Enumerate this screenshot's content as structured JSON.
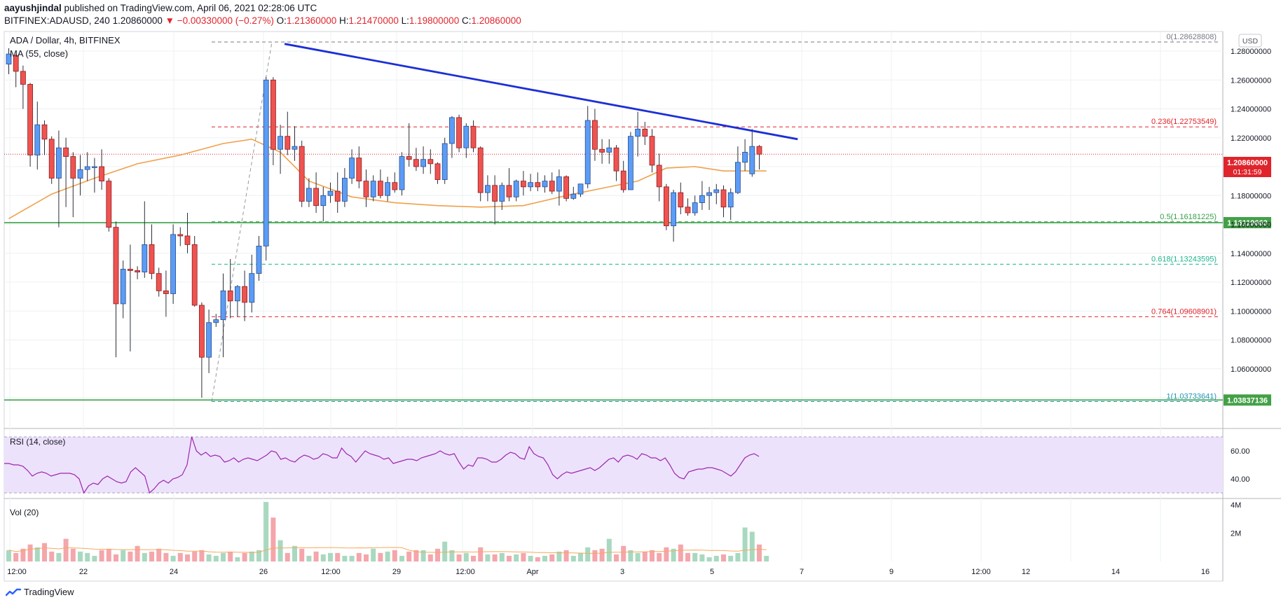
{
  "header": {
    "author": "aayushjindal",
    "published": " published on TradingView.com, April 06, 2021 02:28:06 UTC",
    "symbol": "BITFINEX:ADAUSD, 240",
    "last": "1.20860000",
    "change": "▼ −0.00330000 (−0.27%)",
    "o_label": "O:",
    "o": "1.21360000",
    "h_label": "H:",
    "h": "1.21470000",
    "l_label": "L:",
    "l": "1.19800000",
    "c_label": "C:",
    "c": "1.20860000"
  },
  "legend": {
    "title": "ADA / Dollar, 4h, BITFINEX",
    "ma": "MA (55, close)",
    "currency": "USD",
    "rsi": "RSI (14, close)",
    "vol": "Vol (20)"
  },
  "price_badge": {
    "value": "1.20860000",
    "countdown": "01:31:59"
  },
  "footer": {
    "brand": "TradingView"
  },
  "colors": {
    "up": "#5b9cf6",
    "down": "#ef5350",
    "ma": "#f0a04b",
    "trend": "#1c2fd6",
    "support": "#3aa04a",
    "rsi": "#9c27b0",
    "rsi_band": "#ede2fb",
    "vol_up": "#a8d9c0",
    "vol_down": "#f4a6ab",
    "vol_ma": "#f6a85c"
  },
  "chart_data": {
    "type": "candlestick",
    "pair": "ADA / Dollar",
    "timeframe": "4h",
    "exchange": "BITFINEX",
    "ylim": [
      1.02,
      1.3
    ],
    "x_ticks": [
      "12:00",
      "22",
      "24",
      "26",
      "12:00",
      "29",
      "12:00",
      "Apr",
      "3",
      "5",
      "7",
      "9",
      "12:00",
      "12",
      "14",
      "16"
    ],
    "y_ticks": [
      "1.28000000",
      "1.26000000",
      "1.24000000",
      "1.22000000",
      "1.18000000",
      "1.16000000",
      "1.14000000",
      "1.12000000",
      "1.10000000",
      "1.08000000",
      "1.06000000"
    ],
    "candles": [
      {
        "o": 1.271,
        "h": 1.282,
        "l": 1.264,
        "c": 1.278
      },
      {
        "o": 1.277,
        "h": 1.278,
        "l": 1.255,
        "c": 1.266
      },
      {
        "o": 1.266,
        "h": 1.27,
        "l": 1.24,
        "c": 1.257
      },
      {
        "o": 1.257,
        "h": 1.258,
        "l": 1.2,
        "c": 1.208
      },
      {
        "o": 1.208,
        "h": 1.245,
        "l": 1.198,
        "c": 1.229
      },
      {
        "o": 1.229,
        "h": 1.232,
        "l": 1.208,
        "c": 1.219
      },
      {
        "o": 1.219,
        "h": 1.221,
        "l": 1.188,
        "c": 1.192
      },
      {
        "o": 1.192,
        "h": 1.225,
        "l": 1.158,
        "c": 1.213
      },
      {
        "o": 1.213,
        "h": 1.22,
        "l": 1.172,
        "c": 1.207
      },
      {
        "o": 1.207,
        "h": 1.21,
        "l": 1.165,
        "c": 1.192
      },
      {
        "o": 1.192,
        "h": 1.208,
        "l": 1.18,
        "c": 1.198
      },
      {
        "o": 1.198,
        "h": 1.21,
        "l": 1.19,
        "c": 1.2
      },
      {
        "o": 1.2,
        "h": 1.206,
        "l": 1.182,
        "c": 1.2
      },
      {
        "o": 1.2,
        "h": 1.212,
        "l": 1.184,
        "c": 1.19
      },
      {
        "o": 1.19,
        "h": 1.192,
        "l": 1.155,
        "c": 1.158
      },
      {
        "o": 1.158,
        "h": 1.162,
        "l": 1.068,
        "c": 1.105
      },
      {
        "o": 1.105,
        "h": 1.135,
        "l": 1.095,
        "c": 1.129
      },
      {
        "o": 1.129,
        "h": 1.146,
        "l": 1.072,
        "c": 1.128
      },
      {
        "o": 1.128,
        "h": 1.131,
        "l": 1.122,
        "c": 1.127
      },
      {
        "o": 1.127,
        "h": 1.176,
        "l": 1.123,
        "c": 1.146
      },
      {
        "o": 1.146,
        "h": 1.16,
        "l": 1.122,
        "c": 1.126
      },
      {
        "o": 1.126,
        "h": 1.13,
        "l": 1.11,
        "c": 1.114
      },
      {
        "o": 1.114,
        "h": 1.128,
        "l": 1.096,
        "c": 1.112
      },
      {
        "o": 1.112,
        "h": 1.16,
        "l": 1.105,
        "c": 1.153
      },
      {
        "o": 1.153,
        "h": 1.158,
        "l": 1.145,
        "c": 1.152
      },
      {
        "o": 1.152,
        "h": 1.168,
        "l": 1.14,
        "c": 1.146
      },
      {
        "o": 1.146,
        "h": 1.152,
        "l": 1.103,
        "c": 1.104
      },
      {
        "o": 1.104,
        "h": 1.106,
        "l": 1.04,
        "c": 1.068
      },
      {
        "o": 1.068,
        "h": 1.101,
        "l": 1.057,
        "c": 1.092
      },
      {
        "o": 1.092,
        "h": 1.098,
        "l": 1.089,
        "c": 1.094
      },
      {
        "o": 1.094,
        "h": 1.126,
        "l": 1.068,
        "c": 1.114
      },
      {
        "o": 1.114,
        "h": 1.136,
        "l": 1.095,
        "c": 1.107
      },
      {
        "o": 1.107,
        "h": 1.118,
        "l": 1.096,
        "c": 1.117
      },
      {
        "o": 1.117,
        "h": 1.128,
        "l": 1.093,
        "c": 1.106
      },
      {
        "o": 1.106,
        "h": 1.139,
        "l": 1.099,
        "c": 1.126
      },
      {
        "o": 1.126,
        "h": 1.152,
        "l": 1.121,
        "c": 1.145
      },
      {
        "o": 1.145,
        "h": 1.262,
        "l": 1.135,
        "c": 1.26
      },
      {
        "o": 1.26,
        "h": 1.262,
        "l": 1.201,
        "c": 1.212
      },
      {
        "o": 1.212,
        "h": 1.229,
        "l": 1.195,
        "c": 1.221
      },
      {
        "o": 1.221,
        "h": 1.238,
        "l": 1.208,
        "c": 1.212
      },
      {
        "o": 1.212,
        "h": 1.228,
        "l": 1.204,
        "c": 1.214
      },
      {
        "o": 1.214,
        "h": 1.218,
        "l": 1.172,
        "c": 1.176
      },
      {
        "o": 1.176,
        "h": 1.192,
        "l": 1.172,
        "c": 1.185
      },
      {
        "o": 1.185,
        "h": 1.196,
        "l": 1.168,
        "c": 1.173
      },
      {
        "o": 1.173,
        "h": 1.186,
        "l": 1.162,
        "c": 1.18
      },
      {
        "o": 1.18,
        "h": 1.189,
        "l": 1.175,
        "c": 1.183
      },
      {
        "o": 1.183,
        "h": 1.196,
        "l": 1.168,
        "c": 1.176
      },
      {
        "o": 1.176,
        "h": 1.199,
        "l": 1.172,
        "c": 1.192
      },
      {
        "o": 1.192,
        "h": 1.212,
        "l": 1.188,
        "c": 1.206
      },
      {
        "o": 1.206,
        "h": 1.214,
        "l": 1.185,
        "c": 1.19
      },
      {
        "o": 1.19,
        "h": 1.198,
        "l": 1.172,
        "c": 1.179
      },
      {
        "o": 1.179,
        "h": 1.194,
        "l": 1.176,
        "c": 1.19
      },
      {
        "o": 1.19,
        "h": 1.198,
        "l": 1.178,
        "c": 1.18
      },
      {
        "o": 1.18,
        "h": 1.193,
        "l": 1.176,
        "c": 1.189
      },
      {
        "o": 1.189,
        "h": 1.196,
        "l": 1.182,
        "c": 1.184
      },
      {
        "o": 1.184,
        "h": 1.21,
        "l": 1.18,
        "c": 1.207
      },
      {
        "o": 1.207,
        "h": 1.23,
        "l": 1.2,
        "c": 1.205
      },
      {
        "o": 1.205,
        "h": 1.213,
        "l": 1.197,
        "c": 1.2
      },
      {
        "o": 1.2,
        "h": 1.214,
        "l": 1.195,
        "c": 1.205
      },
      {
        "o": 1.205,
        "h": 1.212,
        "l": 1.195,
        "c": 1.202
      },
      {
        "o": 1.202,
        "h": 1.203,
        "l": 1.188,
        "c": 1.191
      },
      {
        "o": 1.191,
        "h": 1.22,
        "l": 1.188,
        "c": 1.216
      },
      {
        "o": 1.216,
        "h": 1.235,
        "l": 1.206,
        "c": 1.234
      },
      {
        "o": 1.234,
        "h": 1.236,
        "l": 1.21,
        "c": 1.213
      },
      {
        "o": 1.213,
        "h": 1.23,
        "l": 1.206,
        "c": 1.228
      },
      {
        "o": 1.228,
        "h": 1.232,
        "l": 1.21,
        "c": 1.213
      },
      {
        "o": 1.213,
        "h": 1.214,
        "l": 1.176,
        "c": 1.182
      },
      {
        "o": 1.182,
        "h": 1.194,
        "l": 1.176,
        "c": 1.187
      },
      {
        "o": 1.187,
        "h": 1.194,
        "l": 1.16,
        "c": 1.176
      },
      {
        "o": 1.176,
        "h": 1.189,
        "l": 1.17,
        "c": 1.187
      },
      {
        "o": 1.187,
        "h": 1.199,
        "l": 1.176,
        "c": 1.179
      },
      {
        "o": 1.179,
        "h": 1.191,
        "l": 1.176,
        "c": 1.19
      },
      {
        "o": 1.19,
        "h": 1.197,
        "l": 1.18,
        "c": 1.186
      },
      {
        "o": 1.186,
        "h": 1.195,
        "l": 1.183,
        "c": 1.189
      },
      {
        "o": 1.189,
        "h": 1.196,
        "l": 1.183,
        "c": 1.186
      },
      {
        "o": 1.186,
        "h": 1.194,
        "l": 1.182,
        "c": 1.19
      },
      {
        "o": 1.19,
        "h": 1.196,
        "l": 1.181,
        "c": 1.183
      },
      {
        "o": 1.183,
        "h": 1.198,
        "l": 1.173,
        "c": 1.193
      },
      {
        "o": 1.193,
        "h": 1.194,
        "l": 1.176,
        "c": 1.178
      },
      {
        "o": 1.178,
        "h": 1.186,
        "l": 1.177,
        "c": 1.181
      },
      {
        "o": 1.181,
        "h": 1.188,
        "l": 1.179,
        "c": 1.188
      },
      {
        "o": 1.188,
        "h": 1.242,
        "l": 1.185,
        "c": 1.232
      },
      {
        "o": 1.232,
        "h": 1.24,
        "l": 1.204,
        "c": 1.212
      },
      {
        "o": 1.212,
        "h": 1.219,
        "l": 1.202,
        "c": 1.21
      },
      {
        "o": 1.21,
        "h": 1.219,
        "l": 1.202,
        "c": 1.213
      },
      {
        "o": 1.213,
        "h": 1.215,
        "l": 1.19,
        "c": 1.197
      },
      {
        "o": 1.197,
        "h": 1.204,
        "l": 1.182,
        "c": 1.184
      },
      {
        "o": 1.184,
        "h": 1.224,
        "l": 1.184,
        "c": 1.221
      },
      {
        "o": 1.221,
        "h": 1.238,
        "l": 1.207,
        "c": 1.226
      },
      {
        "o": 1.226,
        "h": 1.231,
        "l": 1.215,
        "c": 1.221
      },
      {
        "o": 1.221,
        "h": 1.226,
        "l": 1.196,
        "c": 1.201
      },
      {
        "o": 1.201,
        "h": 1.209,
        "l": 1.176,
        "c": 1.186
      },
      {
        "o": 1.186,
        "h": 1.188,
        "l": 1.156,
        "c": 1.159
      },
      {
        "o": 1.159,
        "h": 1.184,
        "l": 1.148,
        "c": 1.182
      },
      {
        "o": 1.182,
        "h": 1.189,
        "l": 1.167,
        "c": 1.172
      },
      {
        "o": 1.172,
        "h": 1.178,
        "l": 1.166,
        "c": 1.168
      },
      {
        "o": 1.168,
        "h": 1.18,
        "l": 1.166,
        "c": 1.175
      },
      {
        "o": 1.175,
        "h": 1.19,
        "l": 1.17,
        "c": 1.18
      },
      {
        "o": 1.18,
        "h": 1.186,
        "l": 1.17,
        "c": 1.182
      },
      {
        "o": 1.182,
        "h": 1.188,
        "l": 1.174,
        "c": 1.184
      },
      {
        "o": 1.184,
        "h": 1.187,
        "l": 1.165,
        "c": 1.172
      },
      {
        "o": 1.172,
        "h": 1.185,
        "l": 1.163,
        "c": 1.182
      },
      {
        "o": 1.182,
        "h": 1.214,
        "l": 1.181,
        "c": 1.203
      },
      {
        "o": 1.203,
        "h": 1.219,
        "l": 1.197,
        "c": 1.21
      },
      {
        "o": 1.195,
        "h": 1.226,
        "l": 1.193,
        "c": 1.214
      },
      {
        "o": 1.214,
        "h": 1.215,
        "l": 1.198,
        "c": 1.2086
      }
    ],
    "moving_average": {
      "name": "MA (55, close)",
      "points": [
        [
          0,
          1.164
        ],
        [
          6,
          1.181
        ],
        [
          12,
          1.192
        ],
        [
          18,
          1.202
        ],
        [
          24,
          1.208
        ],
        [
          30,
          1.216
        ],
        [
          34,
          1.219
        ],
        [
          38,
          1.21
        ],
        [
          42,
          1.19
        ],
        [
          48,
          1.179
        ],
        [
          54,
          1.175
        ],
        [
          60,
          1.173
        ],
        [
          66,
          1.172
        ],
        [
          72,
          1.173
        ],
        [
          78,
          1.18
        ],
        [
          84,
          1.186
        ],
        [
          88,
          1.19
        ],
        [
          92,
          1.199
        ],
        [
          96,
          1.2
        ],
        [
          100,
          1.197
        ],
        [
          104,
          1.197
        ],
        [
          106,
          1.197
        ]
      ]
    },
    "trend_line": {
      "from": [
        38,
        1.285
      ],
      "to": [
        109,
        1.219
      ]
    },
    "fibonacci": [
      {
        "label": "0(1.28628808)",
        "value": 1.28628808,
        "color": "#787b86"
      },
      {
        "label": "0.236(1.22753549)",
        "value": 1.22753549,
        "color": "#e0242c"
      },
      {
        "label": "0.5(1.16181225)",
        "value": 1.16181225,
        "color": "#3aa04a"
      },
      {
        "label": "0.618(1.13243595)",
        "value": 1.13243595,
        "color": "#1fb48e"
      },
      {
        "label": "0.764(1.09608901)",
        "value": 1.09608901,
        "color": "#e0242c"
      },
      {
        "label": "1(1.03733641)",
        "value": 1.03733641,
        "color": "#2196b3"
      }
    ],
    "supports": [
      {
        "value": 1.16119663,
        "label": "1.16119663"
      },
      {
        "value": 1.03837136,
        "label": "1.03837136"
      }
    ],
    "rsi": {
      "name": "RSI (14, close)",
      "ylim": [
        27,
        73
      ],
      "ticks": [
        "60.00",
        "40.00"
      ],
      "values": [
        51,
        51,
        50,
        50,
        49,
        46,
        42,
        44,
        45,
        44,
        42,
        43,
        44,
        44,
        44,
        43,
        40,
        30,
        35,
        37,
        36,
        40,
        42,
        40,
        38,
        37,
        38,
        45,
        48,
        45,
        42,
        30,
        33,
        37,
        39,
        37,
        40,
        41,
        43,
        50,
        70,
        60,
        57,
        59,
        56,
        57,
        56,
        52,
        53,
        55,
        52,
        54,
        55,
        54,
        53,
        55,
        57,
        60,
        59,
        54,
        55,
        53,
        52,
        55,
        57,
        56,
        54,
        55,
        58,
        57,
        55,
        55,
        62,
        58,
        56,
        52,
        56,
        60,
        58,
        57,
        56,
        54,
        55,
        51,
        52,
        53,
        54,
        54,
        53,
        55,
        56,
        57,
        58,
        60,
        58,
        57,
        58,
        52,
        47,
        50,
        49,
        55,
        55,
        54,
        52,
        52,
        54,
        57,
        59,
        58,
        55,
        54,
        63,
        58,
        56,
        55,
        50,
        43,
        40,
        43,
        45,
        44,
        45,
        46,
        47,
        48,
        46,
        48,
        51,
        54,
        55,
        52,
        56,
        57,
        56,
        54,
        58,
        57,
        55,
        55,
        53,
        55,
        50,
        44,
        41,
        40,
        45,
        46,
        47,
        47,
        48,
        48,
        47,
        46,
        44,
        42,
        45,
        50,
        55,
        57,
        58,
        56
      ],
      "band": [
        30,
        70
      ]
    },
    "volume": {
      "name": "Vol (20)",
      "ticks": [
        "4M",
        "2M"
      ],
      "ylim": [
        0,
        4.2
      ],
      "values": [
        0.8,
        0.6,
        0.9,
        1.2,
        1.0,
        1.3,
        0.7,
        0.6,
        1.6,
        0.9,
        0.7,
        0.6,
        0.4,
        0.8,
        0.9,
        0.5,
        0.8,
        0.7,
        1.1,
        0.6,
        0.7,
        0.9,
        0.6,
        0.4,
        0.6,
        0.5,
        0.7,
        0.8,
        0.5,
        0.4,
        0.6,
        0.7,
        0.3,
        0.6,
        0.7,
        0.8,
        4.2,
        3.1,
        1.5,
        0.6,
        1.1,
        0.9,
        0.4,
        0.7,
        0.5,
        0.6,
        0.6,
        0.4,
        0.4,
        0.6,
        0.5,
        0.9,
        0.6,
        0.7,
        0.8,
        0.4,
        0.7,
        0.8,
        0.8,
        0.5,
        0.9,
        1.4,
        0.8,
        0.5,
        0.6,
        0.4,
        1.0,
        0.5,
        0.5,
        0.6,
        0.4,
        0.5,
        0.6,
        0.4,
        0.3,
        0.4,
        0.5,
        0.7,
        0.8,
        0.4,
        0.6,
        1.0,
        0.8,
        0.9,
        1.6,
        0.5,
        1.1,
        0.8,
        0.6,
        0.7,
        0.8,
        0.6,
        1.0,
        0.9,
        1.2,
        0.6,
        0.6,
        0.5,
        0.3,
        0.4,
        0.5,
        0.4,
        0.6,
        2.4,
        2.1,
        1.2,
        0.4
      ]
    }
  }
}
